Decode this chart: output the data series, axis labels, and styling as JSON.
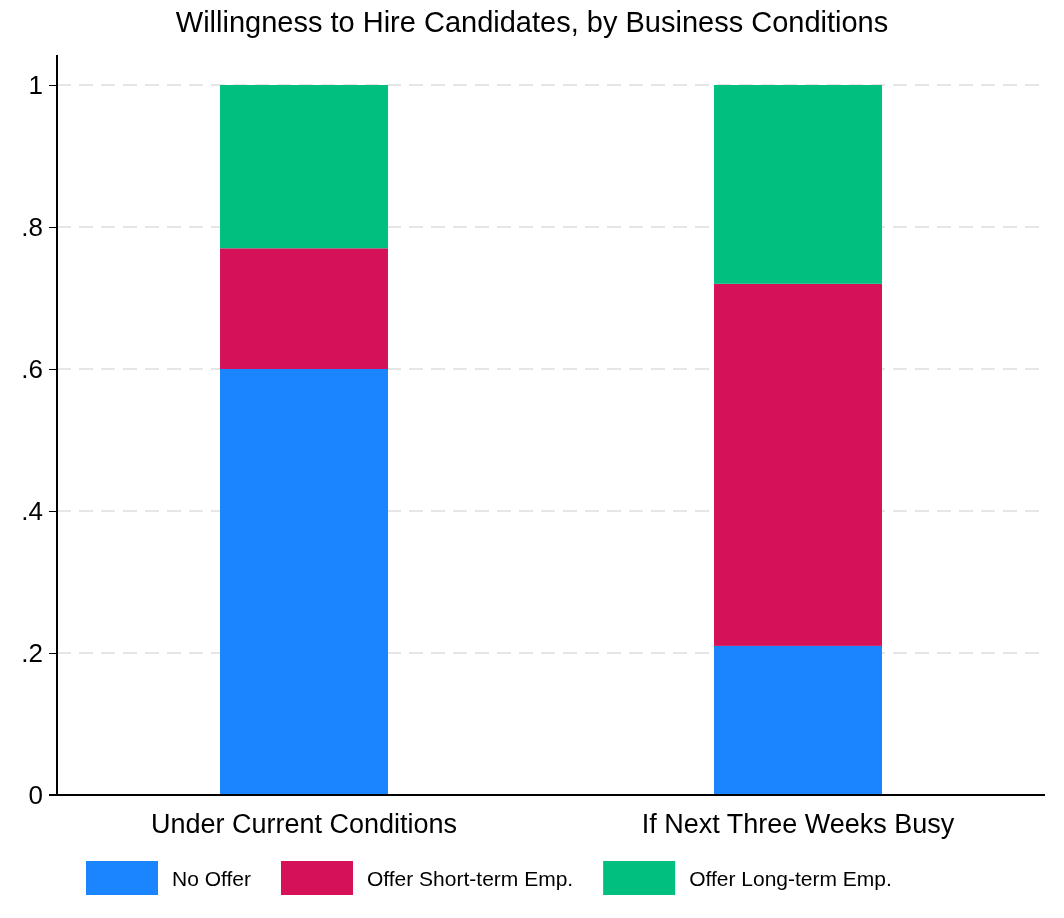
{
  "chart_data": {
    "type": "bar",
    "title": "Willingness to Hire Candidates, by Business Conditions",
    "categories": [
      "Under Current Conditions",
      "If Next Three Weeks Busy"
    ],
    "stacked": true,
    "series": [
      {
        "name": "No Offer",
        "color": "#1a85ff",
        "values": [
          0.6,
          0.21
        ]
      },
      {
        "name": "Offer Short-term Emp.",
        "color": "#d41159",
        "values": [
          0.17,
          0.51
        ]
      },
      {
        "name": "Offer Long-term Emp.",
        "color": "#00bf7f",
        "values": [
          0.23,
          0.28
        ]
      }
    ],
    "ylim": [
      0,
      1
    ],
    "yticks": [
      0,
      {
        "value": 0.2,
        "label": ".2"
      },
      {
        "value": 0.4,
        "label": ".4"
      },
      {
        "value": 0.6,
        "label": ".6"
      },
      {
        "value": 0.8,
        "label": ".8"
      },
      1
    ],
    "grid": "y",
    "legend": "bottom"
  }
}
